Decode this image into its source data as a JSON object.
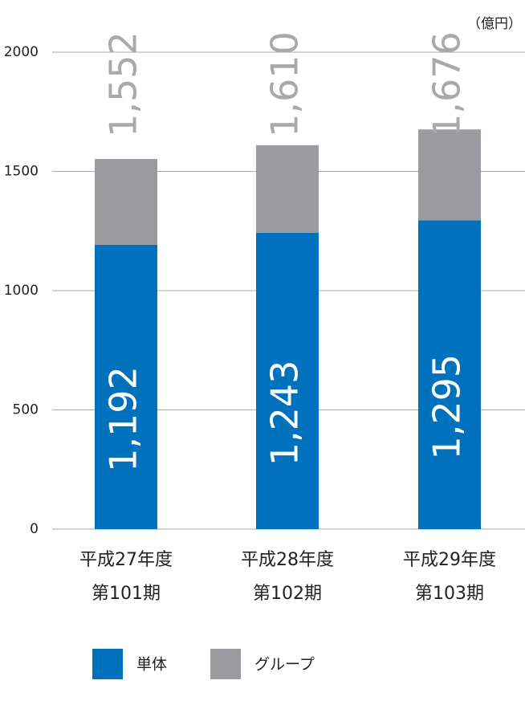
{
  "chart_data": {
    "type": "stacked-bar",
    "unit": "（億円）",
    "categories": [
      [
        "平成27年度",
        "第101期"
      ],
      [
        "平成28年度",
        "第102期"
      ],
      [
        "平成29年度",
        "第103期"
      ]
    ],
    "series": [
      {
        "name": "単体",
        "color": "#0071bc",
        "values": [
          1192,
          1243,
          1295
        ],
        "value_labels": [
          "1,192",
          "1,243",
          "1,295"
        ]
      },
      {
        "name": "グループ",
        "color": "#9b9a9f",
        "values": [
          360,
          367,
          381
        ]
      }
    ],
    "totals": [
      1552,
      1610,
      1676
    ],
    "total_labels": [
      "1,552",
      "1,610",
      "1,676"
    ],
    "ylim": [
      0,
      2000
    ],
    "yticks": [
      0,
      500,
      1000,
      1500,
      2000
    ],
    "grid": true
  }
}
